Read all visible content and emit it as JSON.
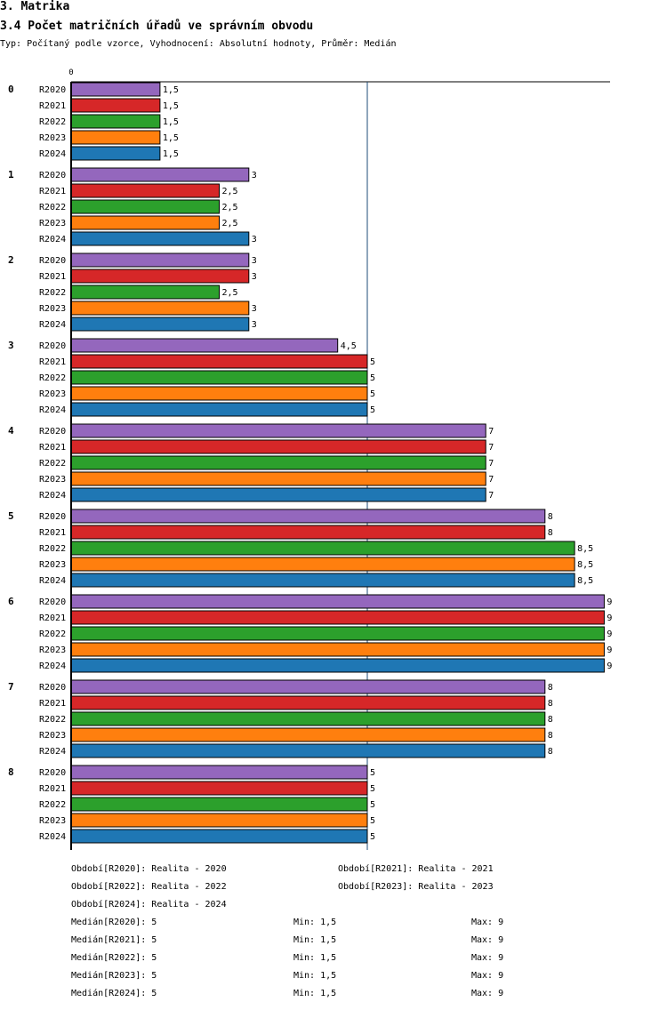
{
  "header": {
    "section": "3. Matrika",
    "title": "3.4 Počet matričních úřadů ve správním obvodu",
    "subtitle": "Typ: Počítaný podle vzorce, Vyhodnocení: Absolutní hodnoty, Průměr: Medián"
  },
  "chart_data": {
    "type": "bar",
    "orientation": "horizontal",
    "title": "3.4 Počet matričních úřadů ve správním obvodu",
    "axis_top_label": "0",
    "xlim": [
      0,
      9
    ],
    "median_line": 5,
    "categories": [
      "0",
      "1",
      "2",
      "3",
      "4",
      "5",
      "6",
      "7",
      "8"
    ],
    "series": [
      {
        "name": "R2020",
        "color": "#9467bd",
        "values": [
          1.5,
          3,
          3,
          4.5,
          7,
          8,
          9,
          8,
          5
        ],
        "labels": [
          "1,5",
          "3",
          "3",
          "4,5",
          "7",
          "8",
          "9",
          "8",
          "5"
        ]
      },
      {
        "name": "R2021",
        "color": "#d62728",
        "values": [
          1.5,
          2.5,
          3,
          5,
          7,
          8,
          9,
          8,
          5
        ],
        "labels": [
          "1,5",
          "2,5",
          "3",
          "5",
          "7",
          "8",
          "9",
          "8",
          "5"
        ]
      },
      {
        "name": "R2022",
        "color": "#2ca02c",
        "values": [
          1.5,
          2.5,
          2.5,
          5,
          7,
          8.5,
          9,
          8,
          5
        ],
        "labels": [
          "1,5",
          "2,5",
          "2,5",
          "5",
          "7",
          "8,5",
          "9",
          "8",
          "5"
        ]
      },
      {
        "name": "R2023",
        "color": "#ff7f0e",
        "values": [
          1.5,
          2.5,
          3,
          5,
          7,
          8.5,
          9,
          8,
          5
        ],
        "labels": [
          "1,5",
          "2,5",
          "3",
          "5",
          "7",
          "8,5",
          "9",
          "8",
          "5"
        ]
      },
      {
        "name": "R2024",
        "color": "#1f77b4",
        "values": [
          1.5,
          3,
          3,
          5,
          7,
          8.5,
          9,
          8,
          5
        ],
        "labels": [
          "1,5",
          "3",
          "3",
          "5",
          "7",
          "8,5",
          "9",
          "8",
          "5"
        ]
      }
    ]
  },
  "legend": [
    "Období[R2020]: Realita - 2020",
    "Období[R2021]: Realita - 2021",
    "Období[R2022]: Realita - 2022",
    "Období[R2023]: Realita - 2023",
    "Období[R2024]: Realita - 2024"
  ],
  "stats": [
    {
      "median": "Medián[R2020]: 5",
      "min": "Min: 1,5",
      "max": "Max: 9"
    },
    {
      "median": "Medián[R2021]: 5",
      "min": "Min: 1,5",
      "max": "Max: 9"
    },
    {
      "median": "Medián[R2022]: 5",
      "min": "Min: 1,5",
      "max": "Max: 9"
    },
    {
      "median": "Medián[R2023]: 5",
      "min": "Min: 1,5",
      "max": "Max: 9"
    },
    {
      "median": "Medián[R2024]: 5",
      "min": "Min: 1,5",
      "max": "Max: 9"
    }
  ]
}
